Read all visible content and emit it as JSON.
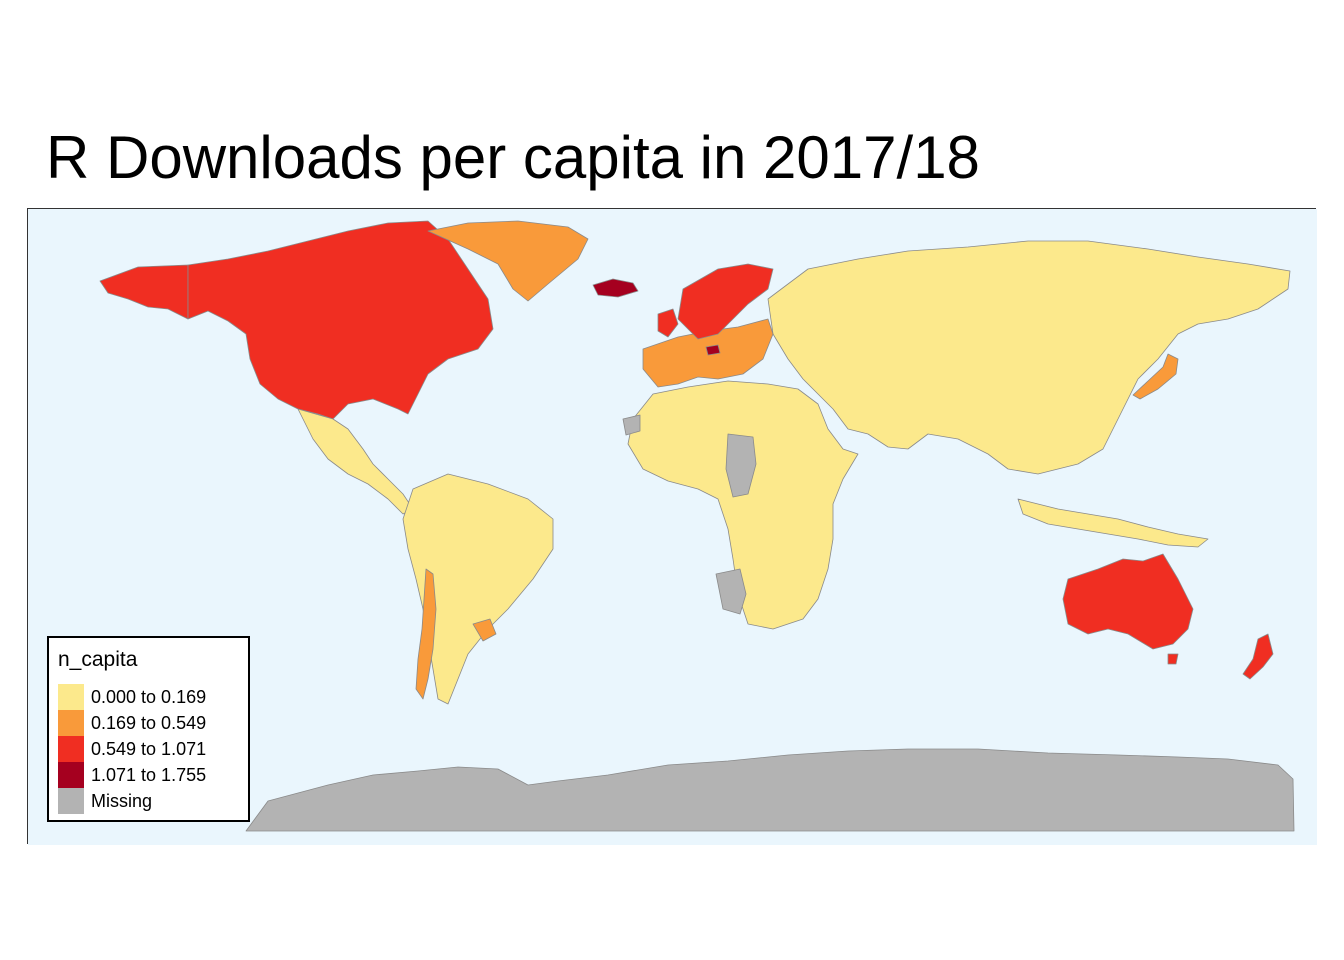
{
  "title": "R Downloads per capita in 2017/18",
  "map": {
    "ocean_color": "#eaf6fd",
    "border_color": "#8a8a8a"
  },
  "legend": {
    "title": "n_capita",
    "items": [
      {
        "label": "0.000 to 0.169",
        "color": "#fce98c"
      },
      {
        "label": "0.169 to 0.549",
        "color": "#f99a3a"
      },
      {
        "label": "0.549 to 1.071",
        "color": "#f02e22"
      },
      {
        "label": "1.071 to 1.755",
        "color": "#a5001f"
      },
      {
        "label": "Missing",
        "color": "#b3b3b3"
      }
    ]
  },
  "regions": [
    {
      "name": "North America (Canada, USA)",
      "bin": "0.549 to 1.071"
    },
    {
      "name": "Greenland",
      "bin": "0.169 to 0.549"
    },
    {
      "name": "Iceland",
      "bin": "1.071 to 1.755"
    },
    {
      "name": "Alaska",
      "bin": "0.549 to 1.071"
    },
    {
      "name": "Mexico & Central America",
      "bin": "0.000 to 0.169"
    },
    {
      "name": "South America",
      "bin": "0.000 to 0.169"
    },
    {
      "name": "Chile",
      "bin": "0.169 to 0.549"
    },
    {
      "name": "Uruguay",
      "bin": "0.169 to 0.549"
    },
    {
      "name": "Europe (Western)",
      "bin": "0.169 to 0.549"
    },
    {
      "name": "Scandinavia, UK, Germany",
      "bin": "0.549 to 1.071"
    },
    {
      "name": "Switzerland",
      "bin": "1.071 to 1.755"
    },
    {
      "name": "Russia & Asia",
      "bin": "0.000 to 0.169"
    },
    {
      "name": "Japan",
      "bin": "0.169 to 0.549"
    },
    {
      "name": "Africa",
      "bin": "0.000 to 0.169"
    },
    {
      "name": "Chad, Namibia, Western Sahara",
      "bin": "Missing"
    },
    {
      "name": "Australia",
      "bin": "0.549 to 1.071"
    },
    {
      "name": "New Zealand",
      "bin": "0.549 to 1.071"
    },
    {
      "name": "Antarctica",
      "bin": "Missing"
    }
  ]
}
